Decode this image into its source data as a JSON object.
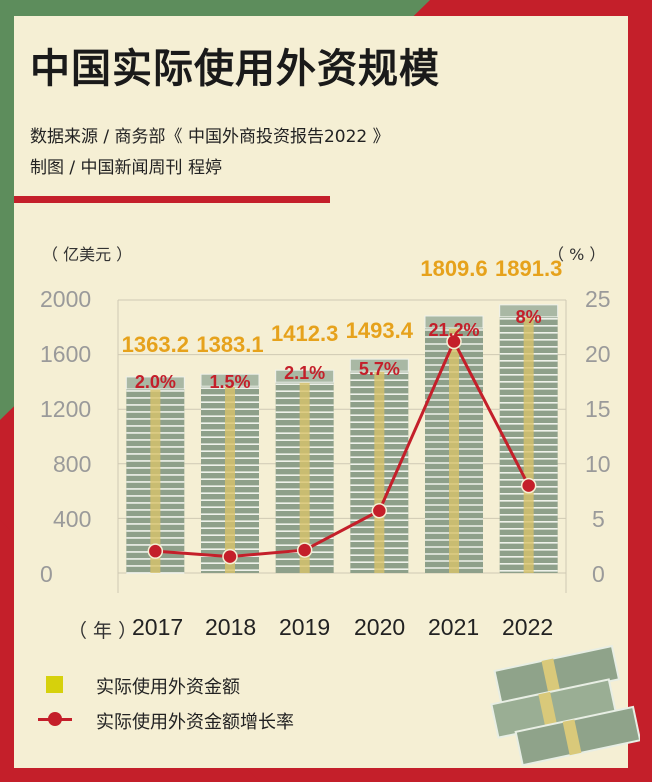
{
  "title": "中国实际使用外资规模",
  "source": "数据来源 / 商务部《 中国外商投资报告2022 》",
  "credit": "制图 / 中国新闻周刊 程婷",
  "left_unit": "（ 亿美元 ）",
  "right_unit": "（ % ）",
  "year_prefix": "（ 年 ）",
  "left_ticks": [
    "2000",
    "1600",
    "1200",
    "800",
    "400",
    "0"
  ],
  "right_ticks": [
    "25",
    "20",
    "15",
    "10",
    "5",
    "0"
  ],
  "legend": {
    "amount": "实际使用外资金额",
    "growth": "实际使用外资金额增长率"
  },
  "colors": {
    "bar_label": "#e6a21c",
    "growth": "#c41f2a",
    "legend_square": "#d6d10c"
  },
  "chart_data": {
    "type": "bar",
    "categories": [
      "2017",
      "2018",
      "2019",
      "2020",
      "2021",
      "2022"
    ],
    "series": [
      {
        "name": "实际使用外资金额",
        "axis": "left",
        "values": [
          1363.2,
          1383.1,
          1412.3,
          1493.4,
          1809.6,
          1891.3
        ],
        "labels": [
          "1363.2",
          "1383.1",
          "1412.3",
          "1493.4",
          "1809.6",
          "1891.3"
        ]
      },
      {
        "name": "实际使用外资金额增长率",
        "axis": "right",
        "type": "line",
        "values": [
          2.0,
          1.5,
          2.1,
          5.7,
          21.2,
          8.0
        ],
        "labels": [
          "2.0%",
          "1.5%",
          "2.1%",
          "5.7%",
          "21.2%",
          "8%"
        ]
      }
    ],
    "ylim_left": [
      0,
      2000
    ],
    "ylim_right": [
      0,
      25
    ],
    "grid": true
  }
}
